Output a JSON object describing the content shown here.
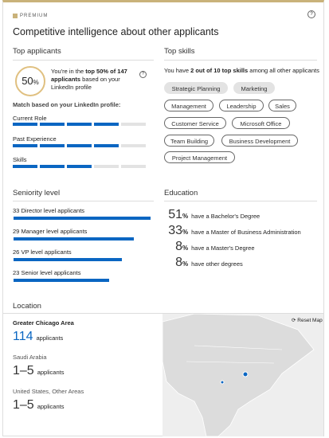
{
  "header": {
    "badge": "PREMIUM",
    "title": "Competitive intelligence about other applicants"
  },
  "top_applicants": {
    "heading": "Top applicants",
    "score": "50",
    "score_unit": "%",
    "summary": [
      "You're in the ",
      "top 50% of 147 applicants",
      " based on your LinkedIn profile"
    ],
    "match_heading": "Match based on your LinkedIn profile:",
    "match_items": [
      "Current Role",
      "Past Experience",
      "Skills"
    ]
  },
  "top_skills": {
    "heading": "Top skills",
    "summary": [
      "You have ",
      "2 out of 10 top skills",
      " among all other applicants"
    ],
    "matched": [
      "Strategic Planning",
      "Marketing"
    ],
    "other": [
      "Management",
      "Leadership",
      "Sales",
      "Customer Service",
      "Microsoft Office",
      "Team Building",
      "Business Development",
      "Project Management"
    ]
  },
  "seniority": {
    "heading": "Seniority level",
    "rows": [
      {
        "count": 33,
        "label": "Director level applicants"
      },
      {
        "count": 29,
        "label": "Manager level applicants"
      },
      {
        "count": 26,
        "label": "VP level applicants"
      },
      {
        "count": 23,
        "label": "Senior level applicants"
      }
    ]
  },
  "education": {
    "heading": "Education",
    "unit": "%",
    "rows": [
      {
        "percent": "51",
        "text": "have a Bachelor's Degree"
      },
      {
        "percent": "33",
        "text": "have a Master of Business Administration"
      },
      {
        "percent": "8",
        "text": "have a Master's Degree"
      },
      {
        "percent": "8",
        "text": "have other degrees"
      }
    ]
  },
  "location": {
    "heading": "Location",
    "reset": "Reset Map",
    "rows": [
      {
        "name": "Greater Chicago Area",
        "count": "114",
        "unit": "applicants"
      },
      {
        "name": "Saudi Arabia",
        "count": "1–5",
        "unit": "applicants"
      },
      {
        "name": "United States, Other Areas",
        "count": "1–5",
        "unit": "applicants"
      }
    ]
  }
}
